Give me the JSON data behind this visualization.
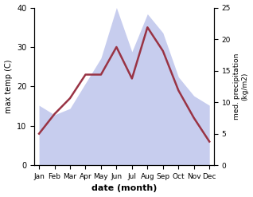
{
  "months": [
    "Jan",
    "Feb",
    "Mar",
    "Apr",
    "May",
    "Jun",
    "Jul",
    "Aug",
    "Sep",
    "Oct",
    "Nov",
    "Dec"
  ],
  "precipitation": [
    9.5,
    8,
    9,
    13,
    17,
    25,
    18,
    24,
    21,
    14,
    11,
    9.5
  ],
  "temperature": [
    8,
    13,
    17,
    23,
    23,
    30,
    22,
    35,
    29,
    19,
    12,
    6
  ],
  "temp_color": "#993344",
  "precip_color": "#b0b8e8",
  "xlabel": "date (month)",
  "ylabel_left": "max temp (C)",
  "ylabel_right": "med. precipitation\n(kg/m2)",
  "ylim_left": [
    0,
    40
  ],
  "ylim_right": [
    0,
    25
  ],
  "yticks_left": [
    0,
    10,
    20,
    30,
    40
  ],
  "yticks_right": [
    0,
    5,
    10,
    15,
    20,
    25
  ],
  "fig_width": 3.18,
  "fig_height": 2.47,
  "dpi": 100
}
